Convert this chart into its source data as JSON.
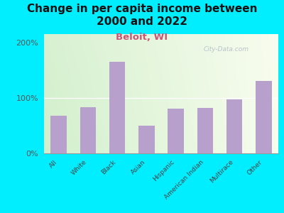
{
  "title": "Change in per capita income between\n2000 and 2022",
  "subtitle": "Beloit, WI",
  "categories": [
    "All",
    "White",
    "Black",
    "Asian",
    "Hispanic",
    "American Indian",
    "Multirace",
    "Other"
  ],
  "values": [
    68,
    83,
    165,
    50,
    80,
    82,
    97,
    130
  ],
  "bar_color": "#b8a0cc",
  "title_fontsize": 11,
  "subtitle_fontsize": 9.5,
  "subtitle_color": "#cc5577",
  "background_color": "#00eeff",
  "ylabel_ticks": [
    0,
    100,
    200
  ],
  "ylabel_labels": [
    "0%",
    "100%",
    "200%"
  ],
  "ylim": [
    0,
    215
  ],
  "watermark": "City-Data.com",
  "watermark_color": "#b0b8c8"
}
